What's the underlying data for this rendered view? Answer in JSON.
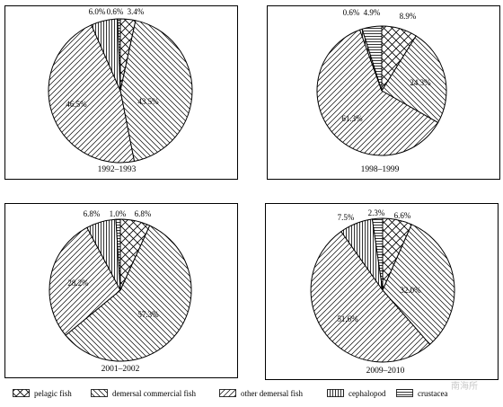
{
  "chart_data": [
    {
      "type": "pie",
      "title": "1992–1993",
      "categories": [
        "pelagic fish",
        "demersal commercial fish",
        "other demersal fish",
        "cephalopod",
        "crustacea"
      ],
      "labels": [
        "3.4%",
        "43.5%",
        "46.5%",
        "6.0%",
        "0.6%"
      ],
      "values": [
        3.4,
        43.5,
        46.5,
        6.0,
        0.6
      ]
    },
    {
      "type": "pie",
      "title": "1998–1999",
      "categories": [
        "pelagic fish",
        "demersal commercial fish",
        "other demersal fish",
        "cephalopod",
        "crustacea"
      ],
      "labels": [
        "8.9%",
        "24.3%",
        "61.3%",
        "0.6%",
        "4.9%"
      ],
      "values": [
        8.9,
        24.3,
        61.3,
        0.6,
        4.9
      ]
    },
    {
      "type": "pie",
      "title": "2001–2002",
      "categories": [
        "pelagic fish",
        "demersal commercial fish",
        "other demersal fish",
        "cephalopod",
        "crustacea"
      ],
      "labels": [
        "6.8%",
        "57.3%",
        "28.2%",
        "6.8%",
        "1.0%"
      ],
      "values": [
        6.8,
        57.3,
        28.2,
        6.8,
        1.0
      ]
    },
    {
      "type": "pie",
      "title": "2009–2010",
      "categories": [
        "pelagic fish",
        "demersal commercial fish",
        "other demersal fish",
        "cephalopod",
        "crustacea"
      ],
      "labels": [
        "6.6%",
        "32.0%",
        "51.6%",
        "7.5%",
        "2.3%"
      ],
      "values": [
        6.6,
        32.0,
        51.6,
        7.5,
        2.3
      ]
    }
  ],
  "legend": [
    {
      "label": "pelagic fish",
      "pattern": "crosshatch"
    },
    {
      "label": "demersal commercial fish",
      "pattern": "diag-back"
    },
    {
      "label": "other demersal fish",
      "pattern": "diag-fwd"
    },
    {
      "label": "cephalopod",
      "pattern": "vertical"
    },
    {
      "label": "crustacea",
      "pattern": "horizontal"
    }
  ],
  "watermark": "南海所"
}
